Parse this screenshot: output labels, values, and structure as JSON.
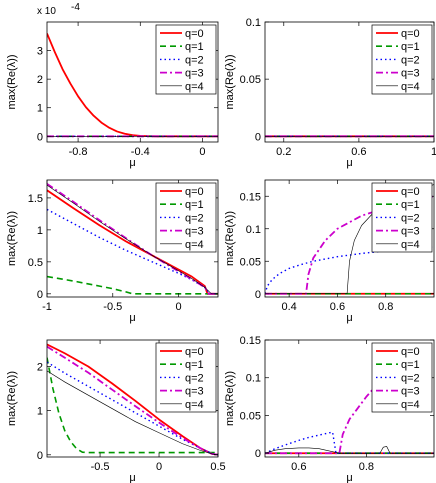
{
  "legend_labels": [
    "q=0",
    "q=1",
    "q=2",
    "q=3",
    "q=4"
  ],
  "series_styles": [
    {
      "color": "#ff0000",
      "dash": "",
      "width": 1.8
    },
    {
      "color": "#009900",
      "dash": "6,4",
      "width": 1.6
    },
    {
      "color": "#0000ff",
      "dash": "1.5,3",
      "width": 1.4
    },
    {
      "color": "#cc00cc",
      "dash": "7,3,2,3",
      "width": 1.8
    },
    {
      "color": "#000000",
      "dash": "",
      "width": 0.6
    }
  ],
  "chart_data": [
    {
      "type": "line",
      "xlabel": "μ",
      "ylabel": "max(Re(λ))",
      "multiplier": "x 10",
      "multiplier_exp": "-4",
      "xlim": [
        -1,
        0.1
      ],
      "ylim": [
        -0.2,
        4
      ],
      "xticks": [
        -0.8,
        -0.4,
        0
      ],
      "xtick_labels": [
        "-0.8",
        "-0.4",
        "0"
      ],
      "yticks": [
        0,
        1,
        2,
        3
      ],
      "ytick_labels": [
        "0",
        "1",
        "2",
        "3"
      ],
      "series": [
        {
          "name": "q=0",
          "x": [
            -1,
            -0.95,
            -0.9,
            -0.85,
            -0.8,
            -0.75,
            -0.7,
            -0.65,
            -0.6,
            -0.55,
            -0.5,
            -0.45,
            -0.4,
            -0.35,
            -0.3,
            -0.2,
            -0.1,
            0,
            0.1
          ],
          "y": [
            3.6,
            2.95,
            2.35,
            1.85,
            1.4,
            1.02,
            0.72,
            0.48,
            0.3,
            0.17,
            0.09,
            0.04,
            0.015,
            0.005,
            0,
            0,
            0,
            0,
            0
          ]
        },
        {
          "name": "q=1",
          "x": [
            -1,
            0.1
          ],
          "y": [
            0,
            0
          ]
        },
        {
          "name": "q=2",
          "x": [
            -1,
            0.1
          ],
          "y": [
            0,
            0
          ]
        },
        {
          "name": "q=3",
          "x": [
            -1,
            0.1
          ],
          "y": [
            0,
            0
          ]
        },
        {
          "name": "q=4",
          "x": [
            -1,
            0.1
          ],
          "y": [
            0,
            0
          ]
        }
      ]
    },
    {
      "type": "line",
      "xlabel": "μ",
      "ylabel": "max(Re(λ))",
      "xlim": [
        0.1,
        1
      ],
      "ylim": [
        -0.005,
        0.1
      ],
      "xticks": [
        0.2,
        0.6,
        1
      ],
      "xtick_labels": [
        "0.2",
        "0.6",
        "1"
      ],
      "yticks": [
        0,
        0.05,
        0.1
      ],
      "ytick_labels": [
        "0",
        "0.05",
        "0.1"
      ],
      "series": [
        {
          "name": "q=0",
          "x": [
            0.1,
            1
          ],
          "y": [
            0,
            0
          ]
        },
        {
          "name": "q=1",
          "x": [
            0.1,
            1
          ],
          "y": [
            0,
            0
          ]
        },
        {
          "name": "q=2",
          "x": [
            0.1,
            1
          ],
          "y": [
            0,
            0
          ]
        },
        {
          "name": "q=3",
          "x": [
            0.1,
            1
          ],
          "y": [
            0,
            0
          ]
        },
        {
          "name": "q=4",
          "x": [
            0.1,
            1
          ],
          "y": [
            0,
            0
          ]
        }
      ]
    },
    {
      "type": "line",
      "xlabel": "μ",
      "ylabel": "max(Re(λ))",
      "xlim": [
        -1,
        0.3
      ],
      "ylim": [
        -0.05,
        1.78
      ],
      "xticks": [
        -1,
        -0.5,
        0
      ],
      "xtick_labels": [
        "-1",
        "-0.5",
        "0"
      ],
      "yticks": [
        0,
        0.5,
        1,
        1.5
      ],
      "ytick_labels": [
        "0",
        "0.5",
        "1",
        "1.5"
      ],
      "series": [
        {
          "name": "q=0",
          "x": [
            -1,
            -0.8,
            -0.6,
            -0.4,
            -0.2,
            0,
            0.1,
            0.2,
            0.22,
            0.3
          ],
          "y": [
            1.62,
            1.34,
            1.07,
            0.82,
            0.6,
            0.38,
            0.27,
            0.12,
            0,
            0
          ]
        },
        {
          "name": "q=1",
          "x": [
            -1,
            -0.8,
            -0.6,
            -0.5,
            -0.4,
            -0.35,
            -0.3,
            0,
            0.3
          ],
          "y": [
            0.27,
            0.2,
            0.12,
            0.08,
            0.03,
            0,
            0,
            0,
            0
          ]
        },
        {
          "name": "q=2",
          "x": [
            -1,
            -0.8,
            -0.6,
            -0.4,
            -0.2,
            0,
            0.1,
            0.2,
            0.24,
            0.3
          ],
          "y": [
            1.32,
            1.1,
            0.88,
            0.68,
            0.5,
            0.32,
            0.22,
            0.1,
            0,
            0
          ]
        },
        {
          "name": "q=3",
          "x": [
            -1,
            -0.8,
            -0.6,
            -0.4,
            -0.2,
            0,
            0.1,
            0.2,
            0.23,
            0.3
          ],
          "y": [
            1.72,
            1.44,
            1.15,
            0.87,
            0.6,
            0.35,
            0.23,
            0.1,
            0,
            0
          ]
        },
        {
          "name": "q=4",
          "x": [
            -1,
            -0.8,
            -0.6,
            -0.4,
            -0.2,
            0,
            0.1,
            0.2,
            0.25,
            0.3
          ],
          "y": [
            1.7,
            1.42,
            1.13,
            0.86,
            0.6,
            0.36,
            0.24,
            0.1,
            0,
            0
          ]
        }
      ]
    },
    {
      "type": "line",
      "xlabel": "μ",
      "ylabel": "max(Re(λ))",
      "xlim": [
        0.3,
        1
      ],
      "ylim": [
        -0.005,
        0.175
      ],
      "xticks": [
        0.4,
        0.6,
        0.8
      ],
      "xtick_labels": [
        "0.4",
        "0.6",
        "0.8"
      ],
      "yticks": [
        0,
        0.05,
        0.1,
        0.15
      ],
      "ytick_labels": [
        "0",
        "0.05",
        "0.1",
        "0.15"
      ],
      "series": [
        {
          "name": "q=0",
          "x": [
            0.3,
            1
          ],
          "y": [
            0,
            0
          ]
        },
        {
          "name": "q=1",
          "x": [
            0.3,
            1
          ],
          "y": [
            0,
            0
          ]
        },
        {
          "name": "q=2",
          "x": [
            0.3,
            0.31,
            0.33,
            0.36,
            0.4,
            0.45,
            0.5,
            0.6,
            0.7,
            0.8,
            0.9,
            1
          ],
          "y": [
            0,
            0.012,
            0.022,
            0.031,
            0.039,
            0.045,
            0.05,
            0.057,
            0.062,
            0.066,
            0.069,
            0.072
          ]
        },
        {
          "name": "q=3",
          "x": [
            0.3,
            0.47,
            0.48,
            0.5,
            0.55,
            0.6,
            0.7,
            0.8,
            0.9,
            1
          ],
          "y": [
            0,
            0,
            0.03,
            0.055,
            0.082,
            0.1,
            0.12,
            0.132,
            0.142,
            0.15
          ]
        },
        {
          "name": "q=4",
          "x": [
            0.3,
            0.64,
            0.65,
            0.67,
            0.7,
            0.75,
            0.8,
            0.9,
            1
          ],
          "y": [
            0,
            0,
            0.05,
            0.082,
            0.105,
            0.125,
            0.138,
            0.155,
            0.168
          ]
        }
      ]
    },
    {
      "type": "line",
      "xlabel": "μ",
      "ylabel": "max(Re(λ))",
      "xlim": [
        -0.95,
        0.5
      ],
      "ylim": [
        -0.05,
        2.6
      ],
      "xticks": [
        -0.5,
        0,
        0.5
      ],
      "xtick_labels": [
        "-0.5",
        "0",
        "0.5"
      ],
      "yticks": [
        0,
        1,
        2
      ],
      "ytick_labels": [
        "0",
        "1",
        "2"
      ],
      "series": [
        {
          "name": "q=0",
          "x": [
            -0.95,
            -0.8,
            -0.6,
            -0.4,
            -0.2,
            0,
            0.2,
            0.35,
            0.45,
            0.5
          ],
          "y": [
            2.5,
            2.3,
            2.0,
            1.62,
            1.22,
            0.8,
            0.42,
            0.15,
            0.02,
            0
          ]
        },
        {
          "name": "q=1",
          "x": [
            -0.95,
            -0.9,
            -0.85,
            -0.8,
            -0.75,
            -0.7,
            -0.65,
            -0.6,
            0.5
          ],
          "y": [
            2.2,
            1.5,
            0.95,
            0.55,
            0.3,
            0.14,
            0.06,
            0.05,
            0.05
          ]
        },
        {
          "name": "q=2",
          "x": [
            -0.95,
            -0.8,
            -0.6,
            -0.4,
            -0.2,
            0,
            0.2,
            0.35,
            0.45,
            0.5
          ],
          "y": [
            2.1,
            1.85,
            1.55,
            1.25,
            0.95,
            0.65,
            0.35,
            0.15,
            0.03,
            0
          ]
        },
        {
          "name": "q=3",
          "x": [
            -0.95,
            -0.8,
            -0.6,
            -0.4,
            -0.2,
            0,
            0.2,
            0.35,
            0.45,
            0.5
          ],
          "y": [
            2.45,
            2.2,
            1.86,
            1.48,
            1.1,
            0.73,
            0.38,
            0.15,
            0.02,
            0
          ]
        },
        {
          "name": "q=4",
          "x": [
            -0.95,
            -0.8,
            -0.6,
            -0.4,
            -0.2,
            0,
            0.2,
            0.35,
            0.45,
            0.5
          ],
          "y": [
            1.9,
            1.65,
            1.35,
            1.05,
            0.75,
            0.5,
            0.25,
            0.1,
            0.02,
            0
          ]
        }
      ]
    },
    {
      "type": "line",
      "xlabel": "μ",
      "ylabel": "max(Re(λ))",
      "xlim": [
        0.5,
        1
      ],
      "ylim": [
        -0.005,
        0.15
      ],
      "xticks": [
        0.6,
        0.8
      ],
      "xtick_labels": [
        "0.6",
        "0.8"
      ],
      "yticks": [
        0,
        0.05,
        0.1,
        0.15
      ],
      "ytick_labels": [
        "0",
        "0.05",
        "0.1",
        "0.15"
      ],
      "series": [
        {
          "name": "q=0",
          "x": [
            0.5,
            1
          ],
          "y": [
            0,
            0
          ]
        },
        {
          "name": "q=1",
          "x": [
            0.5,
            1
          ],
          "y": [
            0,
            0
          ]
        },
        {
          "name": "q=2",
          "x": [
            0.5,
            0.53,
            0.56,
            0.6,
            0.63,
            0.66,
            0.68,
            0.7,
            0.71,
            1
          ],
          "y": [
            0,
            0.006,
            0.011,
            0.017,
            0.021,
            0.024,
            0.026,
            0.028,
            0,
            0
          ]
        },
        {
          "name": "q=3",
          "x": [
            0.5,
            0.72,
            0.73,
            0.75,
            0.8,
            0.85,
            0.9,
            0.95,
            1
          ],
          "y": [
            0,
            0,
            0.025,
            0.045,
            0.075,
            0.1,
            0.118,
            0.132,
            0.145
          ]
        },
        {
          "name": "q=4",
          "x": [
            0.5,
            0.53,
            0.56,
            0.6,
            0.63,
            0.66,
            0.68,
            0.7,
            0.72,
            0.84,
            0.85,
            0.86,
            0.87,
            1
          ],
          "y": [
            0,
            0.004,
            0.006,
            0.007,
            0.007,
            0.006,
            0.004,
            0.002,
            0,
            0,
            0.008,
            0.009,
            0,
            0
          ]
        }
      ]
    }
  ]
}
